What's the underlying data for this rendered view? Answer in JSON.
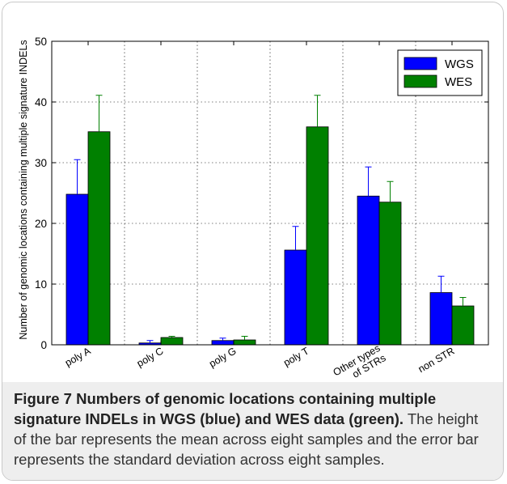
{
  "chart_data": {
    "type": "bar",
    "title": "",
    "xlabel": "",
    "ylabel": "Number of genomic locations containing multiple signature INDELs",
    "ylim": [
      0,
      50
    ],
    "yticks": [
      0,
      10,
      20,
      30,
      40,
      50
    ],
    "grid": true,
    "legend_position": "top-right",
    "categories": [
      "poly A",
      "poly C",
      "poly G",
      "poly T",
      "Other types\nof STRs",
      "non STR"
    ],
    "series": [
      {
        "name": "WGS",
        "color": "#0000ff",
        "values": [
          24.8,
          0.3,
          0.7,
          15.6,
          24.5,
          8.6
        ],
        "errors": [
          5.7,
          0.4,
          0.4,
          3.9,
          4.8,
          2.7
        ]
      },
      {
        "name": "WES",
        "color": "#008000",
        "values": [
          35.1,
          1.2,
          0.8,
          35.9,
          23.5,
          6.4
        ],
        "errors": [
          6.0,
          0.2,
          0.6,
          5.2,
          3.4,
          1.4
        ]
      }
    ]
  },
  "caption": {
    "label": "Figure 7 Numbers of genomic locations containing multiple signature INDELs in WGS (blue) and WES data (green).",
    "text": " The height of the bar represents the mean across eight samples and the error bar represents the standard deviation across eight samples."
  }
}
